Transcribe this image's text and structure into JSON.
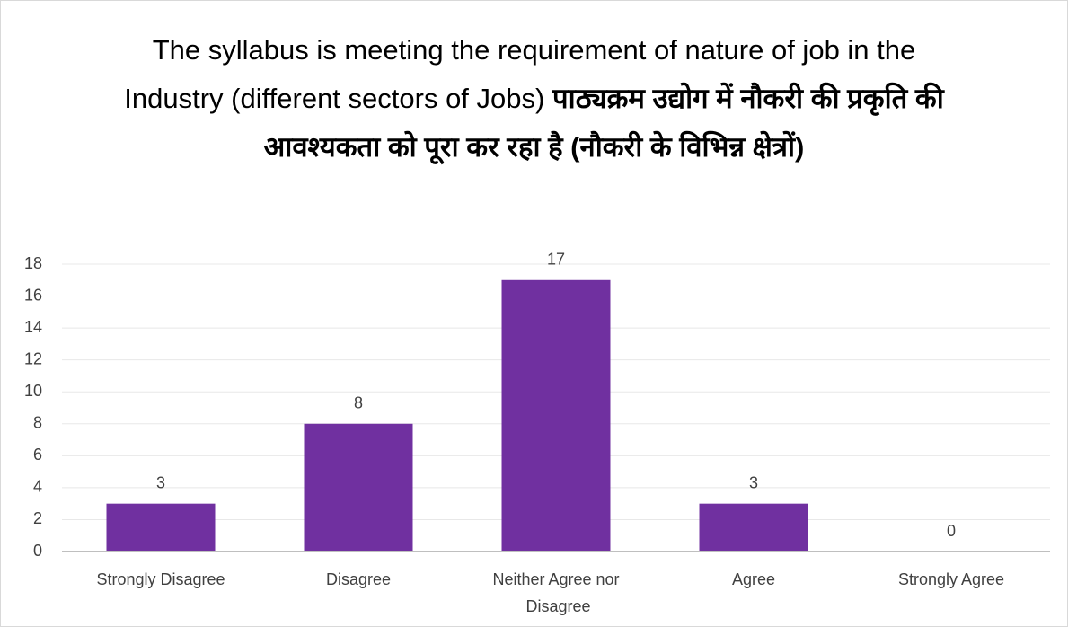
{
  "chart_data": {
    "type": "bar",
    "title": [
      "The syllabus is meeting the requirement of nature of job in the Industry (different sectors of Jobs)",
      "पाठ्यक्रम उद्योग में नौकरी की प्रकृति की आवश्यकता को पूरा कर रहा है (नौकरी के विभिन्न क्षेत्रों)"
    ],
    "categories": [
      "Strongly Disagree",
      "Disagree",
      "Neither Agree nor Disagree",
      "Agree",
      "Strongly Agree"
    ],
    "values": [
      3,
      8,
      17,
      3,
      0
    ],
    "color": "#7030a0",
    "ylim": [
      0,
      18
    ],
    "yticks": [
      0,
      2,
      4,
      6,
      8,
      10,
      12,
      14,
      16,
      18
    ],
    "grid": true
  }
}
